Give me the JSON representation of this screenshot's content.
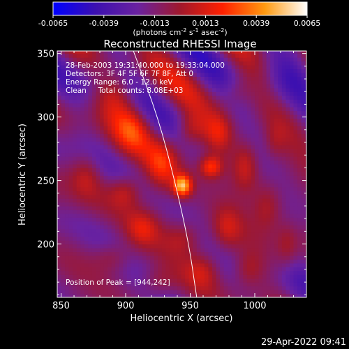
{
  "chart_data": {
    "type": "heatmap",
    "title": "Reconstructed RHESSI Image",
    "xlabel": "Heliocentric X (arcsec)",
    "ylabel": "Heliocentric Y (arcsec)",
    "xlim": [
      847,
      1040
    ],
    "ylim": [
      158,
      352
    ],
    "xticks": [
      850,
      900,
      950,
      1000
    ],
    "yticks": [
      200,
      250,
      300,
      350
    ],
    "colorbar": {
      "min": -0.0065,
      "max": 0.0065,
      "tick_values": [
        -0.0065,
        -0.0039,
        -0.0013,
        0.0013,
        0.0039,
        0.0065
      ],
      "tick_labels": [
        "-0.0065",
        "-0.0039",
        "-0.0013",
        "0.0013",
        "0.0039",
        "0.0065"
      ],
      "unit_label": "(photons cm",
      "unit_sup1": "-2",
      "unit_mid": " s",
      "unit_sup2": "-1",
      "unit_mid2": " asec",
      "unit_sup3": "-2",
      "unit_end": ")",
      "colors": [
        "#0000ff",
        "#3c10b0",
        "#6a22a0",
        "#a0182c",
        "#ff2000",
        "#ff9a10",
        "#ffffff"
      ]
    },
    "info_lines": [
      "28-Feb-2003 19:31:40.000 to 19:33:04.000",
      "Detectors: 3F 4F 5F 6F 7F 8F, Att 0",
      "Energy Range: 6.0 - 12.0 keV",
      "Clean     Total counts: 8.08E+03"
    ],
    "peak_label": "Position of Peak = [944,242]",
    "peak": {
      "x": 944,
      "y": 242
    },
    "limb_curve": [
      {
        "x": 906,
        "y": 352
      },
      {
        "x": 925,
        "y": 300
      },
      {
        "x": 938,
        "y": 250
      },
      {
        "x": 949,
        "y": 200
      },
      {
        "x": 955,
        "y": 158
      }
    ],
    "sources": [
      {
        "x": 944,
        "y": 246,
        "amp": 0.0062,
        "sx": 5,
        "sy": 6
      },
      {
        "x": 966,
        "y": 261,
        "amp": 0.0036,
        "sx": 6,
        "sy": 6
      },
      {
        "x": 928,
        "y": 262,
        "amp": 0.0029,
        "sx": 9,
        "sy": 14
      },
      {
        "x": 905,
        "y": 292,
        "amp": 0.0027,
        "sx": 10,
        "sy": 14
      },
      {
        "x": 972,
        "y": 288,
        "amp": 0.0026,
        "sx": 8,
        "sy": 11
      },
      {
        "x": 950,
        "y": 290,
        "amp": 0.0022,
        "sx": 8,
        "sy": 9
      },
      {
        "x": 993,
        "y": 262,
        "amp": 0.0024,
        "sx": 7,
        "sy": 14
      },
      {
        "x": 900,
        "y": 242,
        "amp": 0.0023,
        "sx": 9,
        "sy": 9
      },
      {
        "x": 892,
        "y": 318,
        "amp": 0.0021,
        "sx": 10,
        "sy": 12
      },
      {
        "x": 913,
        "y": 212,
        "amp": 0.0022,
        "sx": 9,
        "sy": 10
      },
      {
        "x": 945,
        "y": 205,
        "amp": 0.0018,
        "sx": 10,
        "sy": 9
      },
      {
        "x": 978,
        "y": 212,
        "amp": 0.0021,
        "sx": 8,
        "sy": 12
      },
      {
        "x": 1010,
        "y": 230,
        "amp": 0.002,
        "sx": 8,
        "sy": 13
      },
      {
        "x": 870,
        "y": 255,
        "amp": 0.0017,
        "sx": 8,
        "sy": 12
      },
      {
        "x": 960,
        "y": 180,
        "amp": 0.0019,
        "sx": 9,
        "sy": 10
      },
      {
        "x": 995,
        "y": 180,
        "amp": 0.0018,
        "sx": 8,
        "sy": 10
      },
      {
        "x": 890,
        "y": 190,
        "amp": 0.0015,
        "sx": 10,
        "sy": 8
      },
      {
        "x": 1025,
        "y": 200,
        "amp": 0.0015,
        "sx": 6,
        "sy": 12
      },
      {
        "x": 925,
        "y": 170,
        "amp": 0.0014,
        "sx": 9,
        "sy": 8
      },
      {
        "x": 985,
        "y": 320,
        "amp": 0.0012,
        "sx": 8,
        "sy": 8
      },
      {
        "x": 1015,
        "y": 280,
        "amp": 0.0012,
        "sx": 6,
        "sy": 10
      },
      {
        "x": 870,
        "y": 330,
        "amp": -0.0008,
        "sx": 14,
        "sy": 14
      },
      {
        "x": 1025,
        "y": 330,
        "amp": -0.0012,
        "sx": 14,
        "sy": 16
      },
      {
        "x": 1030,
        "y": 170,
        "amp": -0.0007,
        "sx": 10,
        "sy": 10
      }
    ]
  },
  "footer": {
    "date": "29-Apr-2022 09:41"
  }
}
